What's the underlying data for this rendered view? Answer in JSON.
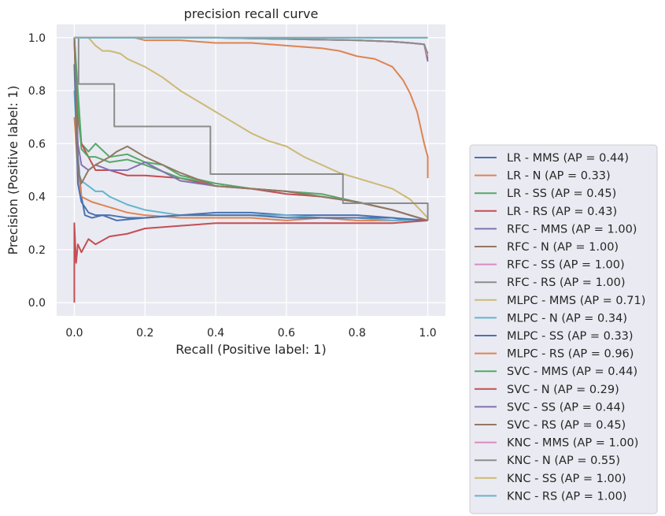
{
  "chart_data": {
    "type": "line",
    "title": "precision recall curve",
    "xlabel": "Recall (Positive label: 1)",
    "ylabel": "Precision (Positive label: 1)",
    "xlim": [
      -0.05,
      1.05
    ],
    "ylim": [
      -0.05,
      1.05
    ],
    "xticks": [
      0.0,
      0.2,
      0.4,
      0.6,
      0.8,
      1.0
    ],
    "xtick_labels": [
      "0.0",
      "0.2",
      "0.4",
      "0.6",
      "0.8",
      "1.0"
    ],
    "yticks": [
      0.0,
      0.2,
      0.4,
      0.6,
      0.8,
      1.0
    ],
    "ytick_labels": [
      "0.0",
      "0.2",
      "0.4",
      "0.6",
      "0.8",
      "1.0"
    ],
    "grid": true,
    "background": "#eaeaf2",
    "legend_position": "outside-right-bottom",
    "series": [
      {
        "name": "LR - MMS (AP = 0.44)",
        "color": "#4c72b0",
        "step": false,
        "x": [
          0.0,
          0.01,
          0.02,
          0.03,
          0.05,
          0.08,
          0.12,
          0.2,
          0.3,
          0.4,
          0.5,
          0.6,
          0.7,
          0.8,
          0.9,
          0.95,
          1.0
        ],
        "y": [
          1.0,
          0.55,
          0.4,
          0.33,
          0.32,
          0.33,
          0.31,
          0.32,
          0.33,
          0.34,
          0.34,
          0.33,
          0.33,
          0.33,
          0.32,
          0.31,
          0.31
        ]
      },
      {
        "name": "LR - N (AP = 0.33)",
        "color": "#dd8452",
        "step": false,
        "x": [
          0.0,
          0.01,
          0.02,
          0.05,
          0.1,
          0.15,
          0.2,
          0.3,
          0.4,
          0.5,
          0.6,
          0.7,
          0.8,
          0.9,
          1.0
        ],
        "y": [
          0.7,
          0.5,
          0.4,
          0.38,
          0.36,
          0.34,
          0.33,
          0.32,
          0.32,
          0.32,
          0.31,
          0.32,
          0.31,
          0.31,
          0.31
        ]
      },
      {
        "name": "LR - SS (AP = 0.45)",
        "color": "#55a868",
        "step": false,
        "x": [
          0.0,
          0.01,
          0.02,
          0.04,
          0.06,
          0.1,
          0.15,
          0.2,
          0.25,
          0.3,
          0.4,
          0.5,
          0.6,
          0.7,
          0.8,
          0.9,
          1.0
        ],
        "y": [
          1.0,
          0.8,
          0.6,
          0.57,
          0.6,
          0.55,
          0.56,
          0.53,
          0.52,
          0.48,
          0.45,
          0.43,
          0.42,
          0.41,
          0.38,
          0.35,
          0.31
        ]
      },
      {
        "name": "LR - RS (AP = 0.43)",
        "color": "#c44e52",
        "step": false,
        "x": [
          0.0,
          0.01,
          0.02,
          0.04,
          0.06,
          0.1,
          0.15,
          0.2,
          0.3,
          0.4,
          0.5,
          0.6,
          0.7,
          0.8,
          0.9,
          1.0
        ],
        "y": [
          1.0,
          0.7,
          0.6,
          0.55,
          0.5,
          0.5,
          0.48,
          0.48,
          0.47,
          0.44,
          0.43,
          0.41,
          0.4,
          0.38,
          0.35,
          0.31
        ]
      },
      {
        "name": "RFC - MMS (AP = 1.00)",
        "color": "#8172b3",
        "step": false,
        "x": [
          0.0,
          0.2,
          0.4,
          0.6,
          0.8,
          0.9,
          0.95,
          0.99,
          1.0
        ],
        "y": [
          1.0,
          1.0,
          1.0,
          0.995,
          0.99,
          0.985,
          0.98,
          0.975,
          0.91
        ]
      },
      {
        "name": "RFC - N (AP = 1.00)",
        "color": "#937860",
        "step": false,
        "x": [
          0.0,
          0.2,
          0.4,
          0.6,
          0.8,
          0.9,
          0.95,
          0.99,
          1.0
        ],
        "y": [
          1.0,
          1.0,
          1.0,
          0.995,
          0.99,
          0.985,
          0.98,
          0.975,
          0.92
        ]
      },
      {
        "name": "RFC - SS (AP = 1.00)",
        "color": "#da8bc3",
        "step": false,
        "x": [
          0.0,
          0.2,
          0.4,
          0.6,
          0.8,
          0.9,
          0.95,
          0.99,
          1.0
        ],
        "y": [
          1.0,
          1.0,
          1.0,
          0.995,
          0.99,
          0.985,
          0.98,
          0.975,
          0.93
        ]
      },
      {
        "name": "RFC - RS (AP = 1.00)",
        "color": "#8c8c8c",
        "step": false,
        "x": [
          0.0,
          0.2,
          0.4,
          0.6,
          0.8,
          0.9,
          0.95,
          0.99,
          1.0
        ],
        "y": [
          1.0,
          1.0,
          1.0,
          0.995,
          0.99,
          0.985,
          0.98,
          0.975,
          0.94
        ]
      },
      {
        "name": "MLPC - MMS (AP = 0.71)",
        "color": "#ccb974",
        "step": false,
        "x": [
          0.0,
          0.02,
          0.04,
          0.06,
          0.08,
          0.1,
          0.13,
          0.15,
          0.2,
          0.25,
          0.3,
          0.35,
          0.4,
          0.45,
          0.5,
          0.55,
          0.6,
          0.65,
          0.7,
          0.75,
          0.8,
          0.85,
          0.9,
          0.95,
          1.0
        ],
        "y": [
          1.0,
          1.0,
          1.0,
          0.97,
          0.95,
          0.95,
          0.94,
          0.92,
          0.89,
          0.85,
          0.8,
          0.76,
          0.72,
          0.68,
          0.64,
          0.61,
          0.59,
          0.55,
          0.52,
          0.49,
          0.47,
          0.45,
          0.43,
          0.39,
          0.32
        ]
      },
      {
        "name": "MLPC - N (AP = 0.34)",
        "color": "#64b5cd",
        "step": false,
        "x": [
          0.0,
          0.01,
          0.02,
          0.04,
          0.06,
          0.08,
          0.1,
          0.15,
          0.2,
          0.3,
          0.4,
          0.5,
          0.6,
          0.7,
          0.8,
          0.9,
          1.0
        ],
        "y": [
          0.8,
          0.5,
          0.46,
          0.44,
          0.42,
          0.42,
          0.4,
          0.37,
          0.35,
          0.33,
          0.33,
          0.33,
          0.33,
          0.32,
          0.32,
          0.31,
          0.31
        ]
      },
      {
        "name": "MLPC - SS (AP = 0.33)",
        "color": "#4c72b0",
        "step": false,
        "x": [
          0.0,
          0.01,
          0.02,
          0.04,
          0.06,
          0.1,
          0.15,
          0.2,
          0.3,
          0.4,
          0.5,
          0.6,
          0.7,
          0.8,
          0.9,
          1.0
        ],
        "y": [
          0.9,
          0.45,
          0.38,
          0.34,
          0.33,
          0.33,
          0.32,
          0.32,
          0.33,
          0.33,
          0.33,
          0.32,
          0.32,
          0.32,
          0.32,
          0.31
        ]
      },
      {
        "name": "MLPC - RS (AP = 0.96)",
        "color": "#dd8452",
        "step": false,
        "x": [
          0.0,
          0.17,
          0.2,
          0.3,
          0.4,
          0.5,
          0.6,
          0.7,
          0.75,
          0.8,
          0.85,
          0.9,
          0.93,
          0.95,
          0.97,
          0.99,
          1.0,
          1.0
        ],
        "y": [
          1.0,
          1.0,
          0.99,
          0.99,
          0.98,
          0.98,
          0.97,
          0.96,
          0.95,
          0.93,
          0.92,
          0.89,
          0.84,
          0.79,
          0.72,
          0.6,
          0.55,
          0.47
        ]
      },
      {
        "name": "SVC - MMS (AP = 0.44)",
        "color": "#55a868",
        "step": false,
        "x": [
          0.0,
          0.01,
          0.02,
          0.04,
          0.06,
          0.1,
          0.15,
          0.2,
          0.3,
          0.4,
          0.5,
          0.6,
          0.7,
          0.8,
          0.9,
          1.0
        ],
        "y": [
          1.0,
          0.75,
          0.58,
          0.55,
          0.55,
          0.53,
          0.54,
          0.52,
          0.47,
          0.45,
          0.43,
          0.42,
          0.4,
          0.38,
          0.35,
          0.31
        ]
      },
      {
        "name": "SVC - N (AP = 0.29)",
        "color": "#c44e52",
        "step": false,
        "x": [
          0.0,
          0.0,
          0.005,
          0.01,
          0.02,
          0.04,
          0.06,
          0.1,
          0.15,
          0.2,
          0.3,
          0.4,
          0.5,
          0.6,
          0.7,
          0.8,
          0.9,
          1.0
        ],
        "y": [
          0.0,
          0.3,
          0.15,
          0.22,
          0.19,
          0.24,
          0.22,
          0.25,
          0.26,
          0.28,
          0.29,
          0.3,
          0.3,
          0.3,
          0.3,
          0.3,
          0.3,
          0.31
        ]
      },
      {
        "name": "SVC - SS (AP = 0.44)",
        "color": "#8172b3",
        "step": false,
        "x": [
          0.0,
          0.01,
          0.02,
          0.04,
          0.06,
          0.1,
          0.15,
          0.2,
          0.3,
          0.4,
          0.5,
          0.6,
          0.7,
          0.8,
          0.9,
          1.0
        ],
        "y": [
          1.0,
          0.6,
          0.52,
          0.5,
          0.52,
          0.5,
          0.5,
          0.53,
          0.46,
          0.44,
          0.43,
          0.42,
          0.4,
          0.38,
          0.35,
          0.31
        ]
      },
      {
        "name": "SVC - RS (AP = 0.45)",
        "color": "#937860",
        "step": false,
        "x": [
          0.0,
          0.01,
          0.02,
          0.04,
          0.06,
          0.1,
          0.12,
          0.15,
          0.2,
          0.3,
          0.4,
          0.5,
          0.6,
          0.7,
          0.8,
          0.9,
          1.0
        ],
        "y": [
          1.0,
          0.5,
          0.45,
          0.5,
          0.52,
          0.55,
          0.57,
          0.59,
          0.55,
          0.49,
          0.44,
          0.43,
          0.42,
          0.4,
          0.38,
          0.35,
          0.31
        ]
      },
      {
        "name": "KNC - MMS (AP = 1.00)",
        "color": "#da8bc3",
        "step": true,
        "x": [
          0.0,
          0.02,
          1.0
        ],
        "y": [
          1.0,
          1.0,
          1.0
        ]
      },
      {
        "name": "KNC - N (AP = 0.55)",
        "color": "#8c8c8c",
        "step": true,
        "x": [
          0.0,
          0.012,
          0.012,
          0.113,
          0.113,
          0.385,
          0.385,
          0.76,
          0.76,
          1.0,
          1.0
        ],
        "y": [
          1.0,
          1.0,
          0.825,
          0.825,
          0.665,
          0.665,
          0.485,
          0.485,
          0.375,
          0.375,
          0.31
        ]
      },
      {
        "name": "KNC - SS (AP = 1.00)",
        "color": "#ccb974",
        "step": true,
        "x": [
          0.0,
          1.0
        ],
        "y": [
          1.0,
          1.0
        ]
      },
      {
        "name": "KNC - RS (AP = 1.00)",
        "color": "#64b5cd",
        "step": true,
        "x": [
          0.0,
          1.0
        ],
        "y": [
          1.0,
          1.0
        ]
      }
    ]
  }
}
